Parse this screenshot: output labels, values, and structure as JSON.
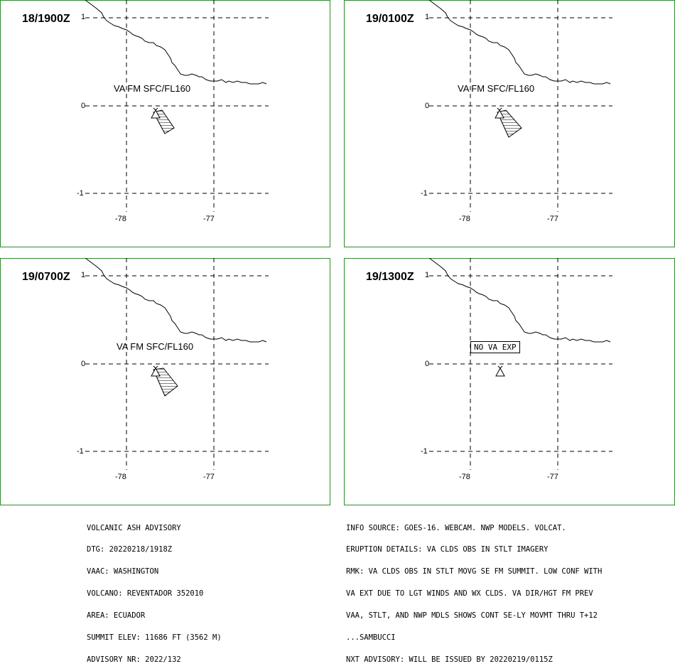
{
  "panels": [
    {
      "time": "18/1900Z",
      "va": "VA FM SFC/FL160",
      "box": false
    },
    {
      "time": "19/0100Z",
      "va": "VA FM SFC/FL160",
      "box": false
    },
    {
      "time": "19/0700Z",
      "va": "VA FM SFC/FL160",
      "box": false
    },
    {
      "time": "19/1300Z",
      "va": "NO VA EXP",
      "box": true
    }
  ],
  "axes": {
    "lat_labels": [
      "1",
      "0",
      "-1"
    ],
    "lon_labels": [
      "-78",
      "-77"
    ]
  },
  "advisory_left": [
    "VOLCANIC ASH ADVISORY",
    "DTG: 20220218/1918Z",
    "VAAC: WASHINGTON",
    "VOLCANO: REVENTADOR 352010",
    "AREA: ECUADOR",
    "SUMMIT ELEV: 11686 FT (3562 M)",
    "ADVISORY NR: 2022/132"
  ],
  "advisory_right": [
    "INFO SOURCE: GOES-16. WEBCAM. NWP MODELS. VOLCAT.",
    "ERUPTION DETAILS: VA CLDS OBS IN STLT IMAGERY",
    "RMK: VA CLDS OBS IN STLT MOVG SE FM SUMMIT. LOW CONF WITH",
    "VA EXT DUE TO LGT WINDS AND WX CLDS. VA DIR/HGT FM PREV",
    "VAA, STLT, AND NWP MDLS SHOWS CONT SE-LY MOVMT THRU T+12",
    "...SAMBUCCI",
    "NXT ADVISORY: WILL BE ISSUED BY 20220219/0115Z"
  ],
  "colors": {
    "frame": "#2e8b2e",
    "ink": "#000000"
  }
}
